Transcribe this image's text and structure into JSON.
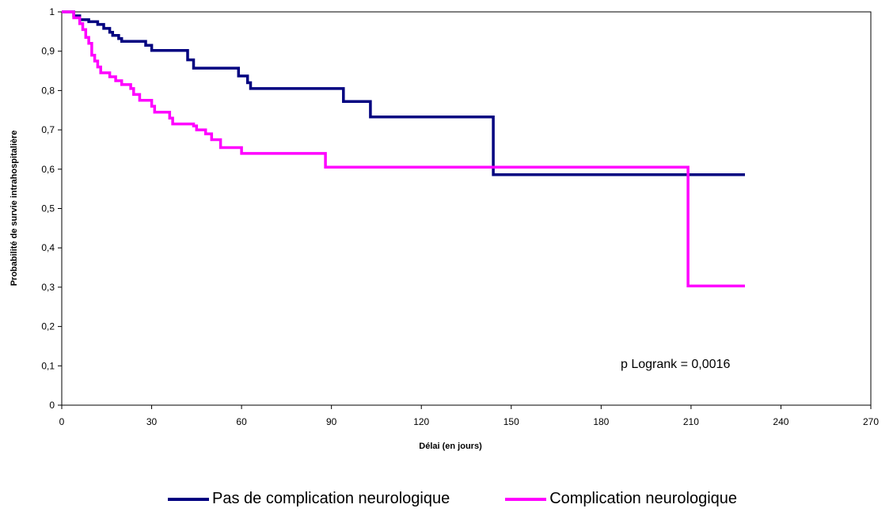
{
  "chart_data": {
    "type": "line",
    "step": true,
    "title": "",
    "xlabel": "Délai (en jours)",
    "ylabel": "Probabilité de survie intrahospitalière",
    "xlim": [
      0,
      270
    ],
    "ylim": [
      0,
      1
    ],
    "x_ticks": [
      "0",
      "30",
      "60",
      "90",
      "120",
      "150",
      "180",
      "210",
      "240",
      "270"
    ],
    "y_ticks": [
      "0",
      "0,1",
      "0,2",
      "0,3",
      "0,4",
      "0,5",
      "0,6",
      "0,7",
      "0,8",
      "0,9",
      "1"
    ],
    "grid": false,
    "legend_position": "bottom",
    "annotation": "p Logrank = 0,0016",
    "series": [
      {
        "name": "Pas de complication neurologique",
        "color": "#000080",
        "points": [
          [
            0,
            1
          ],
          [
            4,
            0.99
          ],
          [
            6,
            0.98
          ],
          [
            9,
            0.975
          ],
          [
            12,
            0.968
          ],
          [
            14,
            0.958
          ],
          [
            16,
            0.948
          ],
          [
            17,
            0.94
          ],
          [
            19,
            0.932
          ],
          [
            20,
            0.925
          ],
          [
            28,
            0.915
          ],
          [
            30,
            0.902
          ],
          [
            42,
            0.878
          ],
          [
            44,
            0.857
          ],
          [
            59,
            0.837
          ],
          [
            62,
            0.82
          ],
          [
            63,
            0.805
          ],
          [
            94,
            0.772
          ],
          [
            103,
            0.733
          ],
          [
            144,
            0.586
          ],
          [
            228,
            0.586
          ]
        ]
      },
      {
        "name": "Complication neurologique",
        "color": "#ff00ff",
        "points": [
          [
            0,
            1
          ],
          [
            4,
            0.985
          ],
          [
            6,
            0.97
          ],
          [
            7,
            0.955
          ],
          [
            8,
            0.935
          ],
          [
            9,
            0.92
          ],
          [
            10,
            0.89
          ],
          [
            11,
            0.875
          ],
          [
            12,
            0.86
          ],
          [
            13,
            0.845
          ],
          [
            16,
            0.835
          ],
          [
            18,
            0.825
          ],
          [
            20,
            0.815
          ],
          [
            23,
            0.805
          ],
          [
            24,
            0.79
          ],
          [
            26,
            0.775
          ],
          [
            30,
            0.76
          ],
          [
            31,
            0.745
          ],
          [
            36,
            0.73
          ],
          [
            37,
            0.715
          ],
          [
            44,
            0.71
          ],
          [
            45,
            0.7
          ],
          [
            48,
            0.69
          ],
          [
            50,
            0.675
          ],
          [
            53,
            0.655
          ],
          [
            60,
            0.64
          ],
          [
            88,
            0.605
          ],
          [
            209,
            0.303
          ],
          [
            228,
            0.303
          ]
        ]
      }
    ]
  }
}
